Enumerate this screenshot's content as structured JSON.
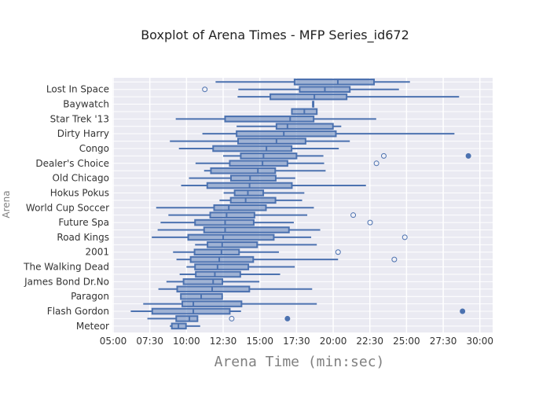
{
  "chart_data": {
    "type": "box",
    "orientation": "horizontal",
    "title": "Boxplot of Arena Times - MFP Series_id672",
    "xlabel": "Arena Time (min:sec)",
    "ylabel": "Arena",
    "x_ticks": [
      "05:00",
      "07:30",
      "10:00",
      "12:30",
      "15:00",
      "17:30",
      "20:00",
      "22:30",
      "25:00",
      "27:30",
      "30:00"
    ],
    "xlim": [
      "05:00",
      "30:00"
    ],
    "grid": true,
    "colors": {
      "box_line": "#4c72b0",
      "box_fill": "rgba(76,114,176,0.5)",
      "plot_bg": "#eaeaf2",
      "grid": "#ffffff"
    },
    "note_order": "top-to-bottom",
    "categories": [
      {
        "name": "",
        "min": "11:59",
        "q1": "17:22",
        "median": "20:19",
        "q3": "22:47",
        "max": "25:14",
        "outliers": []
      },
      {
        "name": "Lost In Space",
        "min": "13:32",
        "q1": "17:43",
        "median": "19:26",
        "q3": "21:08",
        "max": "24:29",
        "outliers": [
          {
            "t": "11:15",
            "marker": "open"
          }
        ]
      },
      {
        "name": "",
        "min": "13:29",
        "q1": "15:43",
        "median": "18:43",
        "q3": "20:55",
        "max": "28:35",
        "outliers": []
      },
      {
        "name": "Baywatch",
        "min": "18:37",
        "q1": "18:37",
        "median": "18:37",
        "q3": "18:37",
        "max": "18:37",
        "outliers": []
      },
      {
        "name": "",
        "min": "17:11",
        "q1": "17:11",
        "median": "18:02",
        "q3": "18:53",
        "max": "18:53",
        "outliers": []
      },
      {
        "name": "Star Trek '13",
        "min": "9:16",
        "q1": "12:38",
        "median": "17:04",
        "q3": "18:40",
        "max": "22:56",
        "outliers": []
      },
      {
        "name": "",
        "min": "13:25",
        "q1": "16:08",
        "median": "16:53",
        "q3": "19:59",
        "max": "20:33",
        "outliers": []
      },
      {
        "name": "Dirty Harry",
        "min": "11:05",
        "q1": "13:25",
        "median": "16:38",
        "q3": "20:11",
        "max": "28:16",
        "outliers": []
      },
      {
        "name": "",
        "min": "8:52",
        "q1": "13:31",
        "median": "16:08",
        "q3": "18:07",
        "max": "21:08",
        "outliers": []
      },
      {
        "name": "Congo",
        "min": "9:29",
        "q1": "11:49",
        "median": "15:27",
        "q3": "17:10",
        "max": "20:23",
        "outliers": []
      },
      {
        "name": "",
        "min": "12:30",
        "q1": "13:42",
        "median": "15:15",
        "q3": "17:30",
        "max": "19:20",
        "outliers": [
          {
            "t": "23:27",
            "marker": "open"
          },
          {
            "t": "29:13",
            "marker": "filled"
          }
        ]
      },
      {
        "name": "Dealer's Choice",
        "min": "10:37",
        "q1": "12:57",
        "median": "15:11",
        "q3": "16:53",
        "max": "19:23",
        "outliers": [
          {
            "t": "22:57",
            "marker": "open"
          }
        ]
      },
      {
        "name": "",
        "min": "11:12",
        "q1": "11:40",
        "median": "14:52",
        "q3": "16:03",
        "max": "19:29",
        "outliers": []
      },
      {
        "name": "Old Chicago",
        "min": "10:10",
        "q1": "13:02",
        "median": "14:20",
        "q3": "16:05",
        "max": "17:25",
        "outliers": []
      },
      {
        "name": "",
        "min": "9:38",
        "q1": "11:25",
        "median": "14:18",
        "q3": "17:11",
        "max": "22:14",
        "outliers": []
      },
      {
        "name": "Hokus Pokus",
        "min": "12:32",
        "q1": "13:17",
        "median": "14:11",
        "q3": "15:14",
        "max": "18:02",
        "outliers": []
      },
      {
        "name": "",
        "min": "12:15",
        "q1": "13:01",
        "median": "14:02",
        "q3": "16:04",
        "max": "17:53",
        "outliers": []
      },
      {
        "name": "World Cup Soccer",
        "min": "7:56",
        "q1": "11:53",
        "median": "12:53",
        "q3": "15:25",
        "max": "18:41",
        "outliers": []
      },
      {
        "name": "",
        "min": "8:46",
        "q1": "11:37",
        "median": "12:44",
        "q3": "14:38",
        "max": "18:14",
        "outliers": [
          {
            "t": "21:22",
            "marker": "open"
          }
        ]
      },
      {
        "name": "Future Spa",
        "min": "8:14",
        "q1": "10:35",
        "median": "12:38",
        "q3": "14:35",
        "max": "17:19",
        "outliers": [
          {
            "t": "22:31",
            "marker": "open"
          }
        ]
      },
      {
        "name": "",
        "min": "8:02",
        "q1": "11:12",
        "median": "12:38",
        "q3": "16:59",
        "max": "19:07",
        "outliers": []
      },
      {
        "name": "Road Kings",
        "min": "7:38",
        "q1": "10:07",
        "median": "12:30",
        "q3": "15:57",
        "max": "18:30",
        "outliers": [
          {
            "t": "24:53",
            "marker": "open"
          }
        ]
      },
      {
        "name": "",
        "min": "10:35",
        "q1": "11:26",
        "median": "12:26",
        "q3": "14:49",
        "max": "18:53",
        "outliers": []
      },
      {
        "name": "2001",
        "min": "9:05",
        "q1": "10:33",
        "median": "12:23",
        "q3": "13:35",
        "max": "16:18",
        "outliers": [
          {
            "t": "20:20",
            "marker": "open"
          }
        ]
      },
      {
        "name": "",
        "min": "9:19",
        "q1": "10:17",
        "median": "12:14",
        "q3": "14:33",
        "max": "20:20",
        "outliers": [
          {
            "t": "24:10",
            "marker": "open"
          }
        ]
      },
      {
        "name": "The Walking Dead",
        "min": "10:00",
        "q1": "10:35",
        "median": "12:07",
        "q3": "14:13",
        "max": "17:23",
        "outliers": []
      },
      {
        "name": "",
        "min": "9:32",
        "q1": "10:38",
        "median": "11:56",
        "q3": "13:40",
        "max": "16:23",
        "outliers": []
      },
      {
        "name": "James Bond Dr.No",
        "min": "8:38",
        "q1": "9:48",
        "median": "11:49",
        "q3": "12:27",
        "max": "14:58",
        "outliers": []
      },
      {
        "name": "",
        "min": "8:05",
        "q1": "9:22",
        "median": "11:45",
        "q3": "14:17",
        "max": "18:34",
        "outliers": []
      },
      {
        "name": "Paragon",
        "min": "9:37",
        "q1": "9:37",
        "median": "11:00",
        "q3": "12:26",
        "max": "12:26",
        "outliers": []
      },
      {
        "name": "",
        "min": "7:03",
        "q1": "9:43",
        "median": "10:28",
        "q3": "13:45",
        "max": "18:53",
        "outliers": []
      },
      {
        "name": "Flash Gordon",
        "min": "6:12",
        "q1": "7:40",
        "median": "10:28",
        "q3": "12:57",
        "max": "13:43",
        "outliers": [
          {
            "t": "28:49",
            "marker": "filled"
          }
        ]
      },
      {
        "name": "",
        "min": "7:20",
        "q1": "9:18",
        "median": "10:12",
        "q3": "10:45",
        "max": "10:47",
        "outliers": [
          {
            "t": "13:05",
            "marker": "open"
          },
          {
            "t": "16:53",
            "marker": "filled"
          }
        ]
      },
      {
        "name": "Meteor",
        "min": "8:52",
        "q1": "9:00",
        "median": "9:27",
        "q3": "9:58",
        "max": "10:56",
        "outliers": []
      }
    ]
  }
}
